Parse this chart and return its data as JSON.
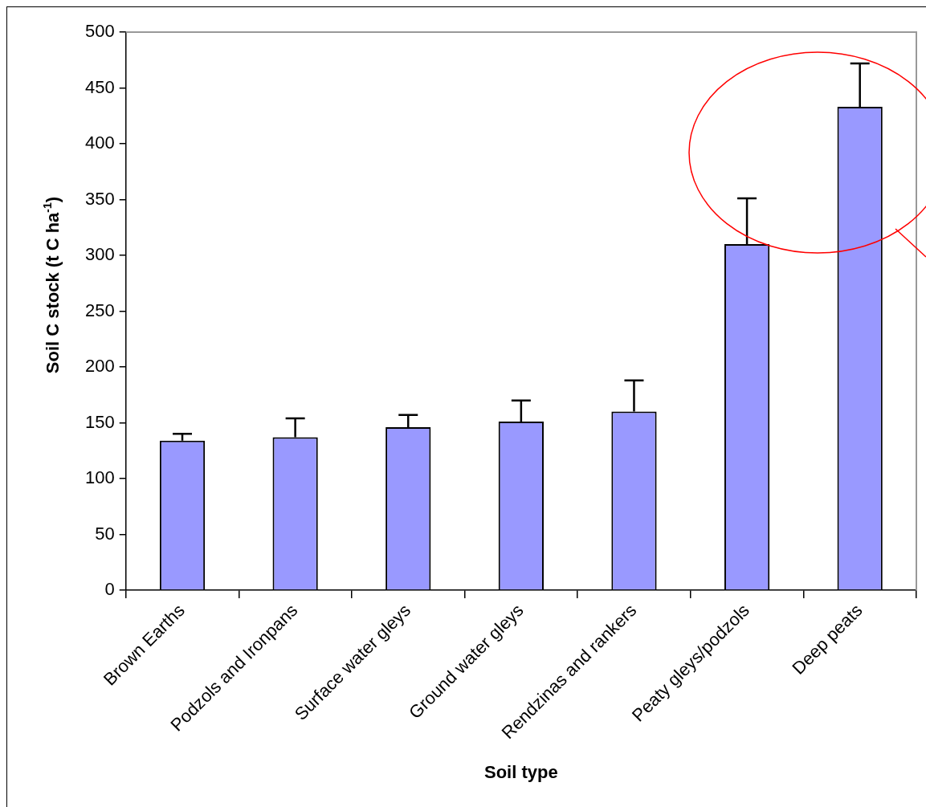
{
  "chart_data": {
    "type": "bar",
    "xlabel": "Soil type",
    "ylabel": "Soil C stock (t C ha$^{-1}$)",
    "categories": [
      "Brown Earths",
      "Podzols and Ironpans",
      "Surface water gleys",
      "Ground water gleys",
      "Rendzinas and rankers",
      "Peaty gleys/podzols",
      "Deep peats"
    ],
    "values": [
      134,
      137,
      146,
      151,
      160,
      310,
      433
    ],
    "errors": [
      [
        134,
        140
      ],
      [
        137,
        154
      ],
      [
        146,
        157
      ],
      [
        151,
        170
      ],
      [
        160,
        188
      ],
      [
        310,
        351
      ],
      [
        433,
        472
      ]
    ],
    "color": "#9999ff",
    "ylim": [
      0,
      500
    ],
    "yticks": [
      0,
      50,
      100,
      150,
      200,
      250,
      300,
      350,
      400,
      450,
      500
    ],
    "grid": false,
    "legend": false
  }
}
